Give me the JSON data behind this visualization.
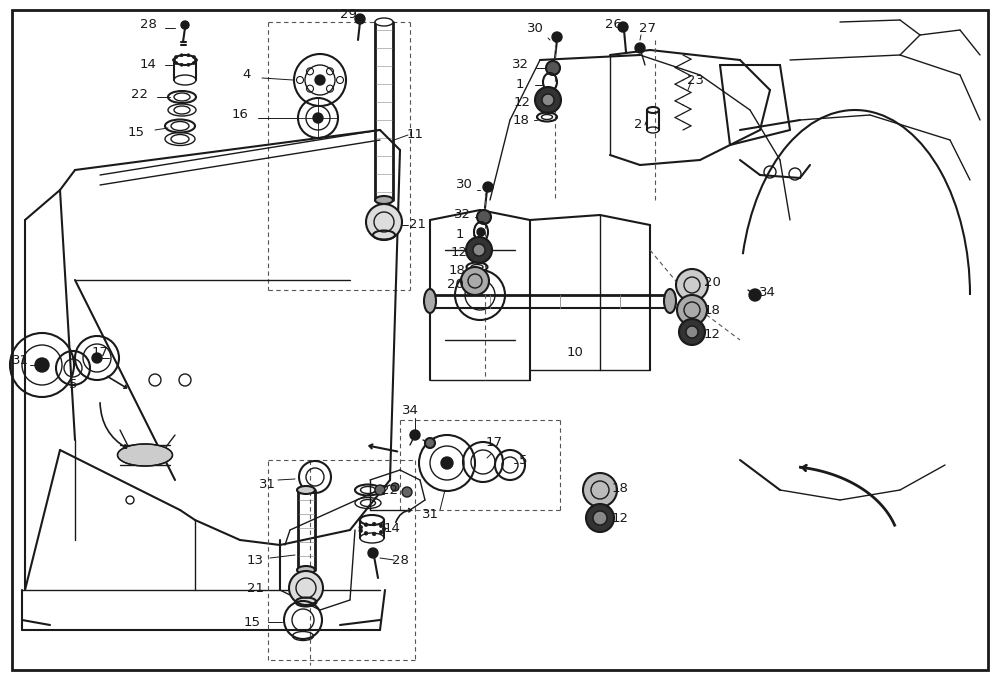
{
  "bg": "#f5f5f0",
  "fg": "#1a1a1a",
  "border": "#000000",
  "figsize": [
    10.0,
    6.8
  ],
  "dpi": 100
}
